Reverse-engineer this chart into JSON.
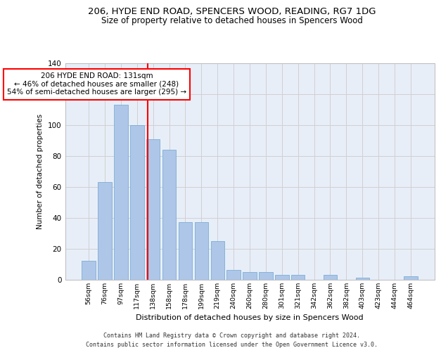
{
  "title1": "206, HYDE END ROAD, SPENCERS WOOD, READING, RG7 1DG",
  "title2": "Size of property relative to detached houses in Spencers Wood",
  "xlabel": "Distribution of detached houses by size in Spencers Wood",
  "ylabel": "Number of detached properties",
  "footer": "Contains HM Land Registry data © Crown copyright and database right 2024.\nContains public sector information licensed under the Open Government Licence v3.0.",
  "bar_labels": [
    "56sqm",
    "76sqm",
    "97sqm",
    "117sqm",
    "138sqm",
    "158sqm",
    "178sqm",
    "199sqm",
    "219sqm",
    "240sqm",
    "260sqm",
    "280sqm",
    "301sqm",
    "321sqm",
    "342sqm",
    "362sqm",
    "382sqm",
    "403sqm",
    "423sqm",
    "444sqm",
    "464sqm"
  ],
  "bar_values": [
    12,
    63,
    113,
    100,
    91,
    84,
    37,
    37,
    25,
    6,
    5,
    5,
    3,
    3,
    0,
    3,
    0,
    1,
    0,
    0,
    2
  ],
  "bar_color": "#aec6e8",
  "bar_edge_color": "#7bafd4",
  "vline_color": "red",
  "annotation_text": "206 HYDE END ROAD: 131sqm\n← 46% of detached houses are smaller (248)\n54% of semi-detached houses are larger (295) →",
  "annotation_box_color": "white",
  "annotation_box_edge_color": "red",
  "ylim": [
    0,
    140
  ],
  "yticks": [
    0,
    20,
    40,
    60,
    80,
    100,
    120,
    140
  ],
  "grid_color": "#d0d0d0",
  "bg_color": "#e8eef8",
  "title1_fontsize": 9.5,
  "title2_fontsize": 8.5,
  "bar_width": 0.85,
  "annotation_fontsize": 7.5
}
